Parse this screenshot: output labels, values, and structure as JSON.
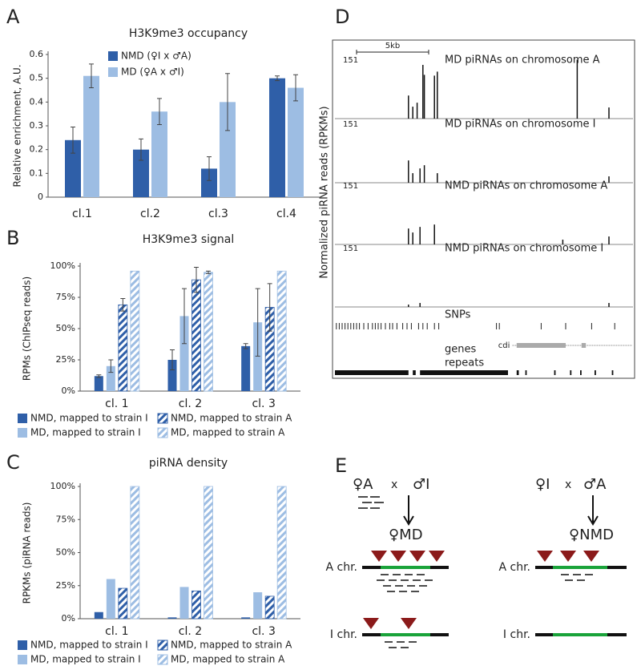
{
  "panels": [
    "A",
    "B",
    "C",
    "D",
    "E"
  ],
  "chart_data": [
    {
      "type": "bar",
      "title": "H3K9me3 occupancy",
      "y_label": "Relative enrichment, A.U.",
      "categories": [
        "cl.1",
        "cl.2",
        "cl.3",
        "cl.4"
      ],
      "series": [
        {
          "name": "NMD (♀I x ♂A)",
          "color": "#2f5fa8",
          "hatch": false,
          "values": [
            0.24,
            0.2,
            0.12,
            0.5
          ],
          "errors": [
            0.055,
            0.045,
            0.05,
            0.01
          ]
        },
        {
          "name": "MD (♀A x ♂I)",
          "color": "#9dbde3",
          "hatch": false,
          "values": [
            0.51,
            0.36,
            0.4,
            0.46
          ],
          "errors": [
            0.05,
            0.055,
            0.12,
            0.055
          ]
        }
      ],
      "ylim": [
        0,
        0.6
      ],
      "yticks": [
        0,
        0.1,
        0.2,
        0.3,
        0.4,
        0.5,
        0.6
      ],
      "grid": false
    },
    {
      "type": "bar",
      "title": "H3K9me3 signal",
      "y_label": "RPMs (ChIPseq reads)",
      "categories": [
        "cl. 1",
        "cl. 2",
        "cl. 3"
      ],
      "series": [
        {
          "name": "NMD, mapped to strain I",
          "color": "#2f5fa8",
          "hatch": false,
          "values": [
            12,
            25,
            36
          ],
          "errors": [
            1,
            8,
            2
          ]
        },
        {
          "name": "MD, mapped to strain I",
          "color": "#9dbde3",
          "hatch": false,
          "values": [
            20,
            60,
            55
          ],
          "errors": [
            5,
            22,
            27
          ]
        },
        {
          "name": "NMD, mapped to strain A",
          "color": "#2f5fa8",
          "hatch": true,
          "values": [
            69,
            89,
            67
          ],
          "errors": [
            5,
            10,
            19
          ]
        },
        {
          "name": "MD, mapped to strain A",
          "color": "#9dbde3",
          "hatch": true,
          "values": [
            96,
            95,
            96
          ],
          "errors": [
            null,
            1,
            null
          ]
        }
      ],
      "ylim": [
        0,
        100
      ],
      "yticks": [
        {
          "value": 0,
          "label": "0%"
        },
        {
          "value": 25,
          "label": "25%"
        },
        {
          "value": 50,
          "label": "50%"
        },
        {
          "value": 75,
          "label": "75%"
        },
        {
          "value": 100,
          "label": "100%"
        }
      ],
      "grid": false
    },
    {
      "type": "bar",
      "title": "piRNA density",
      "y_label": "RPKMs (piRNA reads)",
      "categories": [
        "cl. 1",
        "cl. 2",
        "cl. 3"
      ],
      "series": [
        {
          "name": "NMD, mapped to strain I",
          "color": "#2f5fa8",
          "hatch": false,
          "values": [
            5,
            1,
            1
          ]
        },
        {
          "name": "MD, mapped to strain I",
          "color": "#9dbde3",
          "hatch": false,
          "values": [
            30,
            24,
            20
          ]
        },
        {
          "name": "NMD, mapped to strain A",
          "color": "#2f5fa8",
          "hatch": true,
          "values": [
            23,
            21,
            17
          ]
        },
        {
          "name": "MD, mapped to strain A",
          "color": "#9dbde3",
          "hatch": true,
          "values": [
            100,
            100,
            100
          ]
        }
      ],
      "ylim": [
        0,
        100
      ],
      "yticks": [
        {
          "value": 0,
          "label": "0%"
        },
        {
          "value": 25,
          "label": "25%"
        },
        {
          "value": 50,
          "label": "50%"
        },
        {
          "value": 75,
          "label": "75%"
        },
        {
          "value": 100,
          "label": "100%"
        }
      ],
      "grid": false
    }
  ],
  "browser": {
    "y_label": "Normalized piRNA reads (RPKMs)",
    "scale_bar": {
      "label": "5kb",
      "length": 5
    },
    "tracks": [
      {
        "label": "MD piRNAs on chromosome A",
        "ymax": 151,
        "x": [
          5.1,
          5.4,
          5.7,
          6.1,
          6.2,
          6.9,
          7.1,
          16.8,
          19.0
        ],
        "values": [
          58,
          30,
          40,
          135,
          110,
          108,
          118,
          148,
          28
        ]
      },
      {
        "label": "MD piRNAs on chromosome I",
        "ymax": 151,
        "x": [
          5.1,
          5.4,
          5.9,
          6.2,
          7.1,
          19.0
        ],
        "values": [
          56,
          24,
          36,
          44,
          24,
          16
        ]
      },
      {
        "label": "NMD piRNAs on chromosome A",
        "ymax": 151,
        "x": [
          5.1,
          5.4,
          5.9,
          6.9,
          15.8,
          19.0
        ],
        "values": [
          40,
          30,
          44,
          50,
          12,
          20
        ]
      },
      {
        "label": "NMD piRNAs on chromosome I",
        "ymax": 151,
        "x": [
          5.1,
          5.9,
          19.0
        ],
        "values": [
          6,
          10,
          10
        ]
      }
    ],
    "snps": {
      "label": "SNPs",
      "x": [
        0.1,
        0.3,
        0.5,
        0.7,
        0.9,
        1.1,
        1.3,
        1.5,
        1.7,
        2.0,
        2.3,
        2.6,
        2.8,
        3.0,
        3.2,
        3.5,
        3.8,
        4.0,
        4.3,
        4.7,
        5.0,
        5.3,
        5.8,
        6.1,
        6.4,
        6.9,
        7.2,
        11.2,
        11.4,
        14.3,
        16.0,
        17.8,
        19.4
      ]
    },
    "genes": {
      "label": "genes",
      "name": "cdi",
      "start": 12.3,
      "end": 20.6,
      "exons": [
        [
          12.6,
          16.0
        ],
        [
          17.1,
          17.4
        ]
      ]
    },
    "repeats": {
      "label": "repeats",
      "segments": [
        [
          0,
          5.1
        ],
        [
          5.4,
          5.6
        ],
        [
          5.9,
          12.0
        ],
        [
          12.6,
          12.75
        ],
        [
          13.2,
          13.3
        ],
        [
          15.2,
          15.3
        ],
        [
          16.3,
          16.4
        ],
        [
          17.0,
          17.1
        ],
        [
          18.0,
          18.1
        ],
        [
          19.2,
          19.3
        ]
      ]
    }
  },
  "diagram": {
    "left": {
      "female": "♀A",
      "cross": "x",
      "male": "♂I",
      "offspring": "♀MD"
    },
    "right": {
      "female": "♀I",
      "cross": "x",
      "male": "♂A",
      "offspring": "♀NMD"
    },
    "a_chr": "A chr.",
    "i_chr": "I chr."
  }
}
